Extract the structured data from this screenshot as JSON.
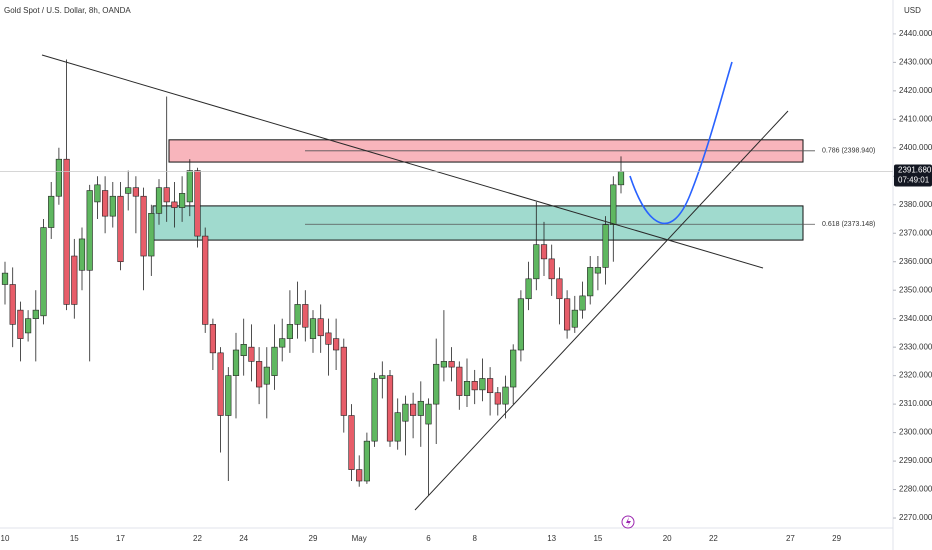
{
  "chart_data": {
    "type": "candlestick",
    "title": "Gold Spot / U.S. Dollar, 8h, OANDA",
    "currency": "USD",
    "categories": [
      "10",
      null,
      null,
      null,
      null,
      null,
      null,
      null,
      null,
      "15",
      null,
      null,
      null,
      null,
      null,
      "17",
      null,
      null,
      null,
      null,
      null,
      null,
      null,
      null,
      null,
      "22",
      null,
      null,
      null,
      null,
      null,
      "24",
      null,
      null,
      null,
      null,
      null,
      null,
      null,
      null,
      "29",
      null,
      null,
      null,
      null,
      null,
      "May",
      null,
      null,
      null,
      null,
      null,
      null,
      null,
      null,
      "6",
      null,
      null,
      null,
      null,
      null,
      "8",
      null,
      null,
      null,
      null,
      null,
      null,
      null,
      null,
      null,
      "13",
      null,
      null,
      null,
      null,
      null,
      "15",
      null,
      null,
      null,
      null,
      null,
      null,
      null,
      null,
      "20",
      null,
      null,
      null,
      null,
      null,
      "22",
      null,
      null,
      null,
      null,
      null,
      null,
      null,
      null,
      null,
      "27",
      null,
      null,
      null,
      null,
      null,
      "29",
      null,
      null
    ],
    "open": [
      2352,
      2352,
      2343,
      2335,
      2340,
      2341,
      2372,
      2383,
      2396,
      2362,
      2357,
      2357,
      2381,
      2385,
      2376,
      2383,
      2384,
      2386,
      2383,
      2362,
      2377,
      2386,
      2381,
      2379,
      2381,
      2392,
      2369,
      2338,
      2328,
      2306,
      2320,
      2327,
      2330,
      2325,
      2317,
      2320,
      2330,
      2333,
      2338,
      2345,
      2333,
      2340,
      2335,
      2333,
      2330,
      2306,
      2287,
      2283,
      2297,
      2319,
      2320,
      2297,
      2304,
      2310,
      2306,
      2303,
      2310,
      2323,
      2325,
      2323,
      2313,
      2318,
      2315,
      2319,
      2314,
      2310,
      2316,
      2329,
      2347,
      2354,
      2366,
      2361,
      2354,
      2347,
      2337,
      2343,
      2348,
      2356,
      2358,
      2373,
      2387,
      null,
      null,
      null,
      null,
      null,
      null,
      null,
      null,
      null,
      null,
      null,
      null,
      null,
      null,
      null,
      null,
      null,
      null,
      null,
      null,
      null,
      null,
      null,
      null,
      null,
      null,
      null,
      null,
      null,
      null
    ],
    "high": [
      2360,
      2358,
      2346,
      2343,
      2350,
      2375,
      2388,
      2400,
      2431,
      2368,
      2372,
      2387,
      2390,
      2390,
      2388,
      2388,
      2392,
      2390,
      2386,
      2380,
      2389,
      2418,
      2388,
      2390,
      2396,
      2393,
      2372,
      2340,
      2330,
      2323,
      2335,
      2340,
      2338,
      2330,
      2330,
      2338,
      2340,
      2350,
      2353,
      2350,
      2343,
      2345,
      2340,
      2340,
      2333,
      2310,
      2292,
      2300,
      2321,
      2325,
      2322,
      2312,
      2313,
      2314,
      2318,
      2312,
      2333,
      2343,
      2330,
      2325,
      2326,
      2322,
      2326,
      2323,
      2316,
      2320,
      2331,
      2350,
      2360,
      2381,
      2374,
      2366,
      2358,
      2350,
      2348,
      2353,
      2362,
      2362,
      2376,
      2390,
      2397,
      null,
      null,
      null,
      null,
      null,
      null,
      null,
      null,
      null,
      null,
      null,
      null,
      null,
      null,
      null,
      null,
      null,
      null,
      null,
      null,
      null,
      null,
      null,
      null,
      null,
      null,
      null,
      null,
      null,
      null
    ],
    "low": [
      2345,
      2330,
      2325,
      2332,
      2325,
      2338,
      2368,
      2380,
      2343,
      2340,
      2350,
      2325,
      2375,
      2370,
      2372,
      2357,
      2378,
      2370,
      2350,
      2355,
      2373,
      2374,
      2372,
      2374,
      2376,
      2365,
      2335,
      2322,
      2293,
      2283,
      2305,
      2320,
      2318,
      2310,
      2305,
      2315,
      2325,
      2328,
      2333,
      2332,
      2328,
      2328,
      2320,
      2322,
      2300,
      2283,
      2281,
      2282,
      2295,
      2312,
      2295,
      2294,
      2292,
      2298,
      2295,
      2278,
      2296,
      2318,
      2318,
      2308,
      2309,
      2310,
      2311,
      2306,
      2306,
      2305,
      2310,
      2325,
      2343,
      2350,
      2355,
      2348,
      2338,
      2333,
      2335,
      2340,
      2345,
      2350,
      2352,
      2360,
      2384,
      null,
      null,
      null,
      null,
      null,
      null,
      null,
      null,
      null,
      null,
      null,
      null,
      null,
      null,
      null,
      null,
      null,
      null,
      null,
      null,
      null,
      null,
      null,
      null,
      null,
      null,
      null,
      null,
      null,
      null
    ],
    "close": [
      2356,
      2338,
      2333,
      2340,
      2343,
      2372,
      2383,
      2396,
      2345,
      2345,
      2368,
      2385,
      2387,
      2376,
      2383,
      2360,
      2386,
      2383,
      2362,
      2377,
      2386,
      2381,
      2379,
      2384,
      2392,
      2369,
      2338,
      2328,
      2306,
      2320,
      2329,
      2331,
      2325,
      2316,
      2323,
      2330,
      2333,
      2338,
      2345,
      2337,
      2340,
      2334,
      2331,
      2329,
      2306,
      2287,
      2283,
      2297,
      2319,
      2320,
      2297,
      2307,
      2310,
      2306,
      2311,
      2310,
      2324,
      2325,
      2323,
      2313,
      2318,
      2315,
      2319,
      2314,
      2310,
      2316,
      2329,
      2347,
      2354,
      2366,
      2361,
      2354,
      2347,
      2336,
      2343,
      2348,
      2358,
      2358,
      2373,
      2387,
      2391.68,
      null,
      null,
      null,
      null,
      null,
      null,
      null,
      null,
      null,
      null,
      null,
      null,
      null,
      null,
      null,
      null,
      null,
      null,
      null,
      null,
      null,
      null,
      null,
      null,
      null,
      null,
      null,
      null,
      null,
      null
    ],
    "up_color": "#5fb760",
    "down_color": "#e75d69",
    "ylim": [
      2266.5,
      2451.9
    ],
    "yticks": [
      {
        "value": 2270,
        "label": "2270.000"
      },
      {
        "value": 2280,
        "label": "2280.000"
      },
      {
        "value": 2290,
        "label": "2290.000"
      },
      {
        "value": 2300,
        "label": "2300.000"
      },
      {
        "value": 2310,
        "label": "2310.000"
      },
      {
        "value": 2320,
        "label": "2320.000"
      },
      {
        "value": 2330,
        "label": "2330.000"
      },
      {
        "value": 2340,
        "label": "2340.000"
      },
      {
        "value": 2350,
        "label": "2350.000"
      },
      {
        "value": 2360,
        "label": "2360.000"
      },
      {
        "value": 2370,
        "label": "2370.000"
      },
      {
        "value": 2380,
        "label": "2380.000"
      },
      {
        "value": 2390,
        "label": "2390.000"
      },
      {
        "value": 2400,
        "label": "2400.000"
      },
      {
        "value": 2410,
        "label": "2410.000"
      },
      {
        "value": 2420,
        "label": "2420.000"
      },
      {
        "value": 2430,
        "label": "2430.000"
      },
      {
        "value": 2440,
        "label": "2440.000"
      }
    ],
    "last_price": {
      "value": 2391.68,
      "label": "2391.680",
      "countdown": "07:49:01"
    },
    "zones": [
      {
        "high": 2402.8,
        "low": 2395.0,
        "color": "#f7a8b0"
      },
      {
        "high": 2379.6,
        "low": 2367.6,
        "color": "#8fd3c6"
      }
    ],
    "fib_levels": [
      {
        "value": 2398.94,
        "label": "0.786 (2398.940)"
      },
      {
        "value": 2373.148,
        "label": "0.618 (2373.148)"
      }
    ]
  }
}
